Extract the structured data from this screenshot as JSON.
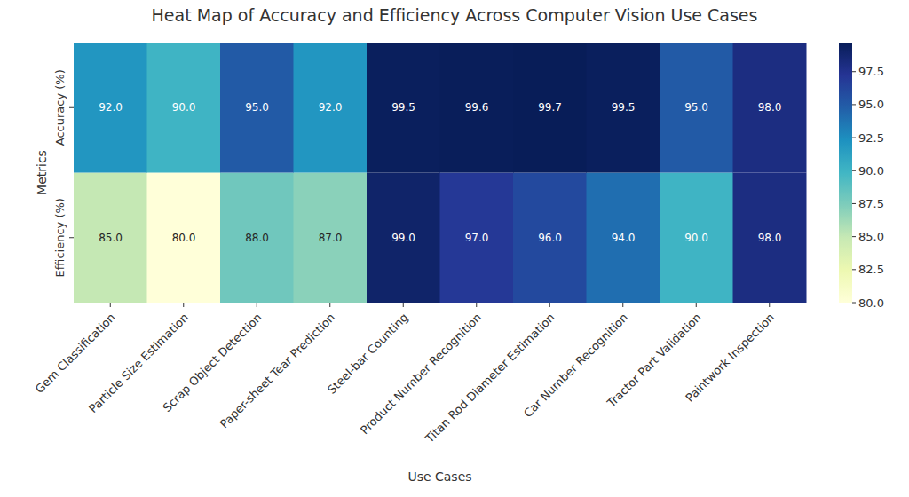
{
  "chart_data": {
    "type": "heatmap",
    "title": "Heat Map of Accuracy and Efficiency Across Computer Vision Use Cases",
    "x_label": "Use Cases",
    "y_label": "Metrics",
    "categories": [
      "Gem Classification",
      "Particle Size Estimation",
      "Scrap Object Detection",
      "Paper-sheet Tear Prediction",
      "Steel-bar Counting",
      "Product Number Recognition",
      "Titan Rod Diameter Estimation",
      "Car Number Recognition",
      "Tractor Part Validation",
      "Paintwork Inspection"
    ],
    "rows": [
      "Accuracy (%)",
      "Efficiency (%)"
    ],
    "values": [
      [
        92.0,
        90.0,
        95.0,
        92.0,
        99.5,
        99.6,
        99.7,
        99.5,
        95.0,
        98.0
      ],
      [
        85.0,
        80.0,
        88.0,
        87.0,
        99.0,
        97.0,
        96.0,
        94.0,
        90.0,
        98.0
      ]
    ],
    "value_labels": [
      [
        "92.0",
        "90.0",
        "95.0",
        "92.0",
        "99.5",
        "99.6",
        "99.7",
        "99.5",
        "95.0",
        "98.0"
      ],
      [
        "85.0",
        "80.0",
        "88.0",
        "87.0",
        "99.0",
        "97.0",
        "96.0",
        "94.0",
        "90.0",
        "98.0"
      ]
    ],
    "data_labels": true,
    "colorbar": {
      "lim": [
        80,
        99.7
      ],
      "ticks": [
        {
          "value": 80,
          "label": "80.0"
        },
        {
          "value": 82.5,
          "label": "82.5"
        },
        {
          "value": 85,
          "label": "85.0"
        },
        {
          "value": 87.5,
          "label": "87.5"
        },
        {
          "value": 90,
          "label": "90.0"
        },
        {
          "value": 92.5,
          "label": "92.5"
        },
        {
          "value": 95,
          "label": "95.0"
        },
        {
          "value": 97.5,
          "label": "97.5"
        }
      ]
    }
  }
}
